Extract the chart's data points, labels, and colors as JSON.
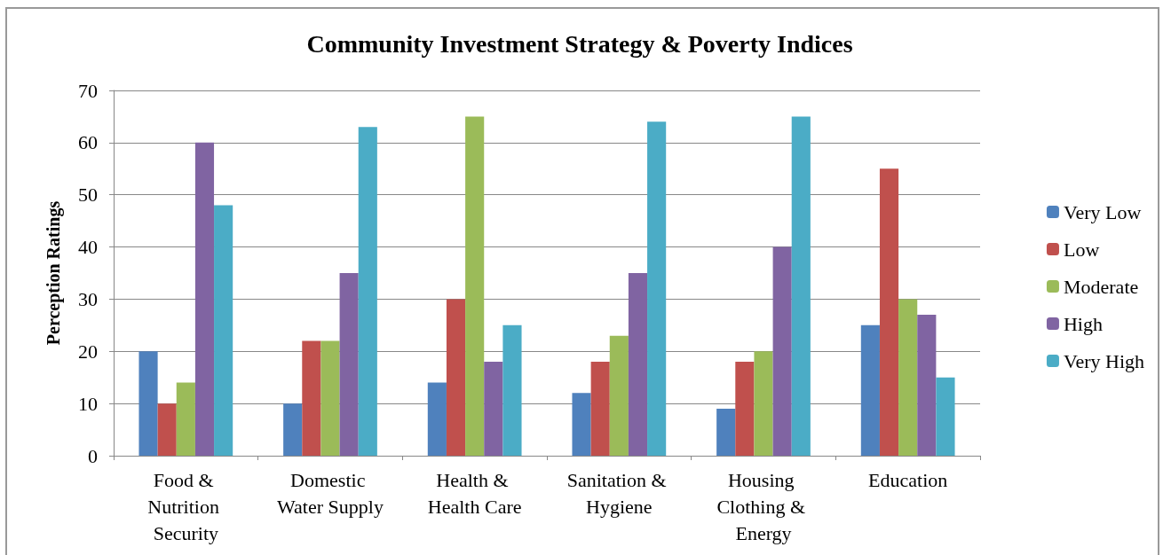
{
  "chart_data": {
    "type": "bar",
    "title": "Community Investment Strategy & Poverty Indices",
    "ylabel": "Perception Ratings",
    "categories": [
      "Food & Nutrition Security",
      "Domestic Water Supply",
      "Health & Health Care",
      "Sanitation & Hygiene",
      "Housing Clothing & Energy",
      "Education"
    ],
    "series": [
      {
        "name": "Very Low",
        "color": "#4f81bd",
        "values": [
          20,
          10,
          14,
          12,
          9,
          25
        ]
      },
      {
        "name": "Low",
        "color": "#c0504d",
        "values": [
          10,
          22,
          30,
          18,
          18,
          55
        ]
      },
      {
        "name": "Moderate",
        "color": "#9bbb59",
        "values": [
          14,
          22,
          65,
          23,
          20,
          30
        ]
      },
      {
        "name": "High",
        "color": "#8064a2",
        "values": [
          60,
          35,
          18,
          35,
          40,
          27
        ]
      },
      {
        "name": "Very High",
        "color": "#4bacc6",
        "values": [
          48,
          63,
          25,
          64,
          65,
          15
        ]
      }
    ],
    "ylim": [
      0,
      70
    ],
    "yticks": [
      0,
      10,
      20,
      30,
      40,
      50,
      60,
      70
    ],
    "grid": "y",
    "legend": "right"
  }
}
